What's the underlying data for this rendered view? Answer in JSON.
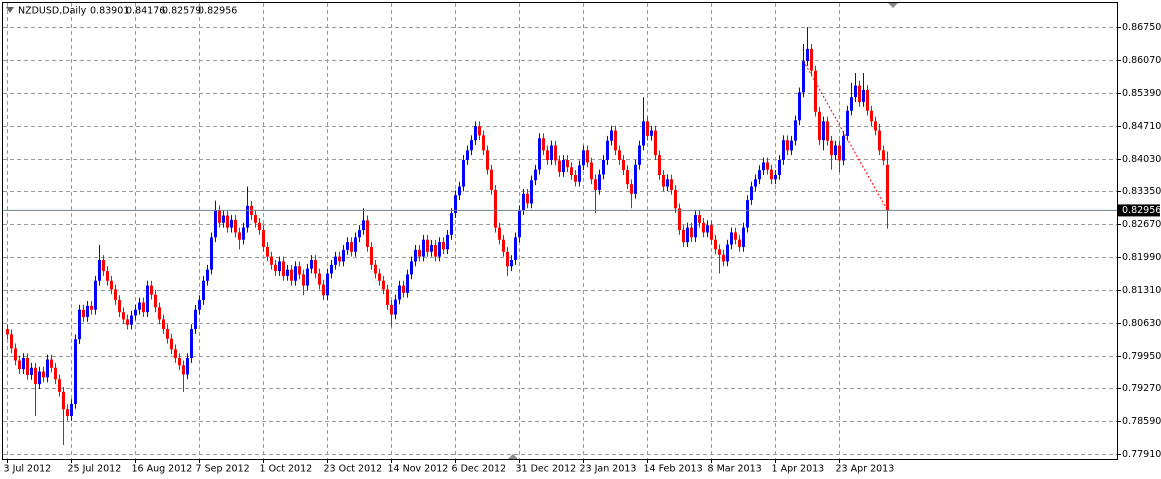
{
  "chart_data": {
    "type": "candlestick",
    "title": "NZDUSD,Daily",
    "up_color": "#0000ff",
    "down_color": "#ff0000",
    "grid": true,
    "ylim": [
      0.7781,
      0.8725
    ],
    "yticks": [
      {
        "value": 0.8675,
        "label": "0.86750"
      },
      {
        "value": 0.8607,
        "label": "0.86070"
      },
      {
        "value": 0.8539,
        "label": "0.85390"
      },
      {
        "value": 0.8471,
        "label": "0.84710"
      },
      {
        "value": 0.8403,
        "label": "0.84030"
      },
      {
        "value": 0.8335,
        "label": "0.83350"
      },
      {
        "value": 0.8267,
        "label": "0.82670"
      },
      {
        "value": 0.8199,
        "label": "0.81990"
      },
      {
        "value": 0.8131,
        "label": "0.81310"
      },
      {
        "value": 0.8063,
        "label": "0.80630"
      },
      {
        "value": 0.7995,
        "label": "0.79950"
      },
      {
        "value": 0.7927,
        "label": "0.79270"
      },
      {
        "value": 0.7859,
        "label": "0.78590"
      },
      {
        "value": 0.7791,
        "label": "0.77910"
      }
    ],
    "categories": [
      "3 Jul 2012",
      null,
      null,
      null,
      null,
      null,
      null,
      null,
      null,
      null,
      null,
      null,
      null,
      null,
      null,
      null,
      "25 Jul 2012",
      null,
      null,
      null,
      null,
      null,
      null,
      null,
      null,
      null,
      null,
      null,
      null,
      null,
      null,
      null,
      "16 Aug 2012",
      null,
      null,
      null,
      null,
      null,
      null,
      null,
      null,
      null,
      null,
      null,
      null,
      null,
      null,
      null,
      "7 Sep 2012",
      null,
      null,
      null,
      null,
      null,
      null,
      null,
      null,
      null,
      null,
      null,
      null,
      null,
      null,
      null,
      "1 Oct 2012",
      null,
      null,
      null,
      null,
      null,
      null,
      null,
      null,
      null,
      null,
      null,
      null,
      null,
      null,
      null,
      "23 Oct 2012",
      null,
      null,
      null,
      null,
      null,
      null,
      null,
      null,
      null,
      null,
      null,
      null,
      null,
      null,
      null,
      "14 Nov 2012",
      null,
      null,
      null,
      null,
      null,
      null,
      null,
      null,
      null,
      null,
      null,
      null,
      null,
      null,
      null,
      "6 Dec 2012",
      null,
      null,
      null,
      null,
      null,
      null,
      null,
      null,
      null,
      null,
      null,
      null,
      null,
      null,
      null,
      "31 Dec 2012",
      null,
      null,
      null,
      null,
      null,
      null,
      null,
      null,
      null,
      null,
      null,
      null,
      null,
      null,
      null,
      "23 Jan 2013",
      null,
      null,
      null,
      null,
      null,
      null,
      null,
      null,
      null,
      null,
      null,
      null,
      null,
      null,
      null,
      "14 Feb 2013",
      null,
      null,
      null,
      null,
      null,
      null,
      null,
      null,
      null,
      null,
      null,
      null,
      null,
      null,
      null,
      "8 Mar 2013",
      null,
      null,
      null,
      null,
      null,
      null,
      null,
      null,
      null,
      null,
      null,
      null,
      null,
      null,
      null,
      "1 Apr 2013",
      null,
      null,
      null,
      null,
      null,
      null,
      null,
      null,
      null,
      null,
      null,
      null,
      null,
      null,
      null,
      "23 Apr 2013",
      null,
      null,
      null,
      null,
      null,
      null,
      null,
      null,
      null,
      null,
      null,
      null
    ],
    "open": [
      0.805,
      0.8039,
      0.801,
      0.7985,
      0.7967,
      0.799,
      0.7955,
      0.797,
      0.7936,
      0.7962,
      0.795,
      0.7987,
      0.797,
      0.7946,
      0.792,
      0.7884,
      0.787,
      0.7895,
      0.8029,
      0.809,
      0.8075,
      0.8098,
      0.809,
      0.815,
      0.8193,
      0.817,
      0.815,
      0.8132,
      0.811,
      0.8085,
      0.807,
      0.8059,
      0.8078,
      0.809,
      0.8105,
      0.8085,
      0.814,
      0.8121,
      0.8095,
      0.807,
      0.805,
      0.803,
      0.8008,
      0.799,
      0.7975,
      0.7956,
      0.799,
      0.805,
      0.809,
      0.811,
      0.815,
      0.8173,
      0.824,
      0.8296,
      0.827,
      0.8285,
      0.826,
      0.8276,
      0.825,
      0.8235,
      0.826,
      0.8305,
      0.8286,
      0.827,
      0.8255,
      0.822,
      0.82,
      0.8183,
      0.817,
      0.819,
      0.816,
      0.8173,
      0.815,
      0.818,
      0.8163,
      0.814,
      0.8175,
      0.8193,
      0.8165,
      0.8142,
      0.812,
      0.8165,
      0.8183,
      0.82,
      0.819,
      0.8214,
      0.823,
      0.821,
      0.824,
      0.8255,
      0.8275,
      0.822,
      0.8183,
      0.8165,
      0.815,
      0.8132,
      0.81,
      0.808,
      0.8111,
      0.814,
      0.8125,
      0.8163,
      0.819,
      0.8214,
      0.82,
      0.8235,
      0.821,
      0.8224,
      0.82,
      0.823,
      0.8215,
      0.8245,
      0.829,
      0.8327,
      0.8345,
      0.84,
      0.842,
      0.8441,
      0.847,
      0.8451,
      0.842,
      0.838,
      0.8338,
      0.826,
      0.8235,
      0.821,
      0.818,
      0.8193,
      0.824,
      0.8296,
      0.833,
      0.831,
      0.8358,
      0.838,
      0.8445,
      0.842,
      0.84,
      0.843,
      0.8399,
      0.8375,
      0.84,
      0.8385,
      0.8369,
      0.8355,
      0.8389,
      0.842,
      0.8395,
      0.836,
      0.8338,
      0.837,
      0.84,
      0.844,
      0.8461,
      0.842,
      0.84,
      0.8379,
      0.835,
      0.833,
      0.839,
      0.843,
      0.848,
      0.845,
      0.8461,
      0.841,
      0.8369,
      0.8345,
      0.836,
      0.8338,
      0.83,
      0.8255,
      0.823,
      0.826,
      0.824,
      0.8286,
      0.827,
      0.825,
      0.8265,
      0.8235,
      0.8215,
      0.8204,
      0.819,
      0.8225,
      0.825,
      0.8235,
      0.822,
      0.826,
      0.8317,
      0.8345,
      0.836,
      0.8379,
      0.8395,
      0.838,
      0.836,
      0.8369,
      0.84,
      0.8441,
      0.842,
      0.844,
      0.8482,
      0.854,
      0.8605,
      0.863,
      0.8585,
      0.85,
      0.8441,
      0.848,
      0.844,
      0.841,
      0.843,
      0.8399,
      0.845,
      0.8502,
      0.853,
      0.8554,
      0.852,
      0.8545,
      0.8502,
      0.848,
      0.8461,
      0.842,
      0.83901
    ],
    "high": [
      0.806,
      0.8049,
      0.802,
      0.7995,
      0.8,
      0.8,
      0.798,
      0.798,
      0.7972,
      0.7972,
      0.7997,
      0.7997,
      0.798,
      0.7956,
      0.793,
      0.7894,
      0.7905,
      0.8039,
      0.81,
      0.81,
      0.8108,
      0.8108,
      0.816,
      0.8224,
      0.8203,
      0.818,
      0.816,
      0.8142,
      0.812,
      0.8095,
      0.808,
      0.8088,
      0.81,
      0.8115,
      0.8115,
      0.815,
      0.815,
      0.8131,
      0.8105,
      0.808,
      0.806,
      0.804,
      0.8018,
      0.8,
      0.7985,
      0.8,
      0.806,
      0.81,
      0.812,
      0.816,
      0.8183,
      0.825,
      0.8316,
      0.8306,
      0.8295,
      0.8295,
      0.8286,
      0.8286,
      0.826,
      0.827,
      0.8345,
      0.8315,
      0.8296,
      0.828,
      0.8265,
      0.823,
      0.821,
      0.8193,
      0.82,
      0.82,
      0.8183,
      0.8183,
      0.819,
      0.819,
      0.8173,
      0.8185,
      0.8203,
      0.8203,
      0.8175,
      0.8152,
      0.8175,
      0.8193,
      0.821,
      0.821,
      0.8224,
      0.824,
      0.824,
      0.825,
      0.8265,
      0.83,
      0.8285,
      0.823,
      0.8193,
      0.8175,
      0.816,
      0.8142,
      0.811,
      0.8121,
      0.815,
      0.815,
      0.8173,
      0.82,
      0.8224,
      0.8224,
      0.8245,
      0.8245,
      0.8234,
      0.8234,
      0.824,
      0.824,
      0.8255,
      0.83,
      0.8337,
      0.8355,
      0.841,
      0.843,
      0.8451,
      0.848,
      0.848,
      0.8461,
      0.843,
      0.839,
      0.8348,
      0.827,
      0.8245,
      0.822,
      0.8203,
      0.825,
      0.8306,
      0.834,
      0.834,
      0.8368,
      0.839,
      0.8455,
      0.8455,
      0.843,
      0.844,
      0.844,
      0.8409,
      0.841,
      0.841,
      0.8395,
      0.8379,
      0.8399,
      0.843,
      0.843,
      0.8405,
      0.837,
      0.838,
      0.841,
      0.845,
      0.8471,
      0.8471,
      0.843,
      0.841,
      0.8389,
      0.836,
      0.84,
      0.844,
      0.853,
      0.849,
      0.8471,
      0.8471,
      0.842,
      0.8379,
      0.837,
      0.837,
      0.8348,
      0.831,
      0.8265,
      0.827,
      0.827,
      0.8296,
      0.8296,
      0.828,
      0.8275,
      0.8275,
      0.8245,
      0.8225,
      0.8214,
      0.8235,
      0.826,
      0.826,
      0.8245,
      0.827,
      0.8327,
      0.8355,
      0.837,
      0.8389,
      0.8405,
      0.8405,
      0.839,
      0.8379,
      0.841,
      0.8451,
      0.8451,
      0.845,
      0.8492,
      0.855,
      0.864,
      0.8675,
      0.864,
      0.8595,
      0.851,
      0.849,
      0.849,
      0.845,
      0.844,
      0.844,
      0.846,
      0.8512,
      0.856,
      0.858,
      0.8564,
      0.858,
      0.8555,
      0.8512,
      0.849,
      0.8475,
      0.843,
      0.84176
    ],
    "low": [
      0.8029,
      0.8,
      0.7975,
      0.7957,
      0.7957,
      0.7945,
      0.7945,
      0.787,
      0.7926,
      0.794,
      0.794,
      0.796,
      0.7936,
      0.791,
      0.781,
      0.786,
      0.786,
      0.7885,
      0.8019,
      0.8065,
      0.8065,
      0.808,
      0.808,
      0.814,
      0.816,
      0.814,
      0.8122,
      0.81,
      0.8075,
      0.806,
      0.8049,
      0.8049,
      0.8068,
      0.808,
      0.8075,
      0.8075,
      0.8111,
      0.8085,
      0.806,
      0.804,
      0.802,
      0.7998,
      0.798,
      0.7965,
      0.792,
      0.7946,
      0.798,
      0.804,
      0.808,
      0.81,
      0.814,
      0.8163,
      0.823,
      0.826,
      0.826,
      0.825,
      0.825,
      0.824,
      0.8215,
      0.8225,
      0.825,
      0.8276,
      0.826,
      0.8245,
      0.821,
      0.819,
      0.8173,
      0.816,
      0.816,
      0.815,
      0.815,
      0.814,
      0.814,
      0.8153,
      0.812,
      0.813,
      0.8165,
      0.8155,
      0.8132,
      0.811,
      0.811,
      0.8155,
      0.8173,
      0.818,
      0.818,
      0.8204,
      0.82,
      0.82,
      0.823,
      0.8245,
      0.821,
      0.8173,
      0.8155,
      0.814,
      0.8122,
      0.809,
      0.8055,
      0.807,
      0.8101,
      0.8115,
      0.8115,
      0.8153,
      0.818,
      0.819,
      0.819,
      0.82,
      0.82,
      0.819,
      0.819,
      0.8205,
      0.8205,
      0.8235,
      0.828,
      0.8317,
      0.8335,
      0.839,
      0.841,
      0.8431,
      0.8441,
      0.841,
      0.837,
      0.8328,
      0.825,
      0.8225,
      0.82,
      0.816,
      0.817,
      0.8183,
      0.823,
      0.8286,
      0.83,
      0.83,
      0.8348,
      0.837,
      0.841,
      0.839,
      0.839,
      0.8389,
      0.8365,
      0.8365,
      0.8375,
      0.8359,
      0.8345,
      0.8345,
      0.8379,
      0.8385,
      0.835,
      0.829,
      0.8328,
      0.836,
      0.839,
      0.843,
      0.841,
      0.839,
      0.8369,
      0.834,
      0.83,
      0.832,
      0.838,
      0.842,
      0.844,
      0.844,
      0.84,
      0.8359,
      0.8335,
      0.8335,
      0.8328,
      0.829,
      0.8245,
      0.822,
      0.822,
      0.823,
      0.823,
      0.826,
      0.824,
      0.824,
      0.8225,
      0.8205,
      0.8165,
      0.818,
      0.818,
      0.8215,
      0.8225,
      0.821,
      0.821,
      0.825,
      0.8307,
      0.8335,
      0.835,
      0.8369,
      0.837,
      0.835,
      0.835,
      0.8359,
      0.839,
      0.841,
      0.841,
      0.843,
      0.8472,
      0.853,
      0.8595,
      0.8575,
      0.849,
      0.8431,
      0.842,
      0.843,
      0.838,
      0.84,
      0.8375,
      0.8389,
      0.844,
      0.8492,
      0.852,
      0.851,
      0.851,
      0.8492,
      0.847,
      0.8451,
      0.841,
      0.8389,
      0.82579
    ],
    "close": [
      0.8039,
      0.801,
      0.7985,
      0.7967,
      0.799,
      0.7955,
      0.797,
      0.7936,
      0.7962,
      0.795,
      0.7987,
      0.797,
      0.7946,
      0.792,
      0.7884,
      0.787,
      0.7895,
      0.8029,
      0.809,
      0.8075,
      0.8098,
      0.809,
      0.815,
      0.8193,
      0.817,
      0.815,
      0.8132,
      0.811,
      0.8085,
      0.807,
      0.8059,
      0.8078,
      0.809,
      0.8105,
      0.8085,
      0.814,
      0.8121,
      0.8095,
      0.807,
      0.805,
      0.803,
      0.8008,
      0.799,
      0.7975,
      0.7956,
      0.799,
      0.805,
      0.809,
      0.811,
      0.815,
      0.8173,
      0.824,
      0.8296,
      0.827,
      0.8285,
      0.826,
      0.8276,
      0.825,
      0.8235,
      0.826,
      0.8305,
      0.8286,
      0.827,
      0.8255,
      0.822,
      0.82,
      0.8183,
      0.817,
      0.819,
      0.816,
      0.8173,
      0.815,
      0.818,
      0.8163,
      0.814,
      0.8175,
      0.8193,
      0.8165,
      0.8142,
      0.812,
      0.8165,
      0.8183,
      0.82,
      0.819,
      0.8214,
      0.823,
      0.821,
      0.824,
      0.8255,
      0.8275,
      0.822,
      0.8183,
      0.8165,
      0.815,
      0.8132,
      0.81,
      0.808,
      0.8111,
      0.814,
      0.8125,
      0.8163,
      0.819,
      0.8214,
      0.82,
      0.8235,
      0.821,
      0.8224,
      0.82,
      0.823,
      0.8215,
      0.8245,
      0.829,
      0.8327,
      0.8345,
      0.84,
      0.842,
      0.8441,
      0.847,
      0.8451,
      0.842,
      0.838,
      0.8338,
      0.826,
      0.8235,
      0.821,
      0.818,
      0.8193,
      0.824,
      0.8296,
      0.833,
      0.831,
      0.8358,
      0.838,
      0.8445,
      0.842,
      0.84,
      0.843,
      0.8399,
      0.8375,
      0.84,
      0.8385,
      0.8369,
      0.8355,
      0.8389,
      0.842,
      0.8395,
      0.836,
      0.8338,
      0.837,
      0.84,
      0.844,
      0.8461,
      0.842,
      0.84,
      0.8379,
      0.835,
      0.833,
      0.839,
      0.843,
      0.848,
      0.845,
      0.8461,
      0.841,
      0.8369,
      0.8345,
      0.836,
      0.8338,
      0.83,
      0.8255,
      0.823,
      0.826,
      0.824,
      0.8286,
      0.827,
      0.825,
      0.8265,
      0.8235,
      0.8215,
      0.8204,
      0.819,
      0.8225,
      0.825,
      0.8235,
      0.822,
      0.826,
      0.8317,
      0.8345,
      0.836,
      0.8379,
      0.8395,
      0.838,
      0.836,
      0.8369,
      0.84,
      0.8441,
      0.842,
      0.844,
      0.8482,
      0.854,
      0.8605,
      0.863,
      0.8585,
      0.85,
      0.8441,
      0.848,
      0.844,
      0.841,
      0.843,
      0.8399,
      0.845,
      0.8502,
      0.853,
      0.8554,
      0.852,
      0.8545,
      0.8502,
      0.848,
      0.8461,
      0.842,
      0.8399,
      0.82956
    ]
  }
}
